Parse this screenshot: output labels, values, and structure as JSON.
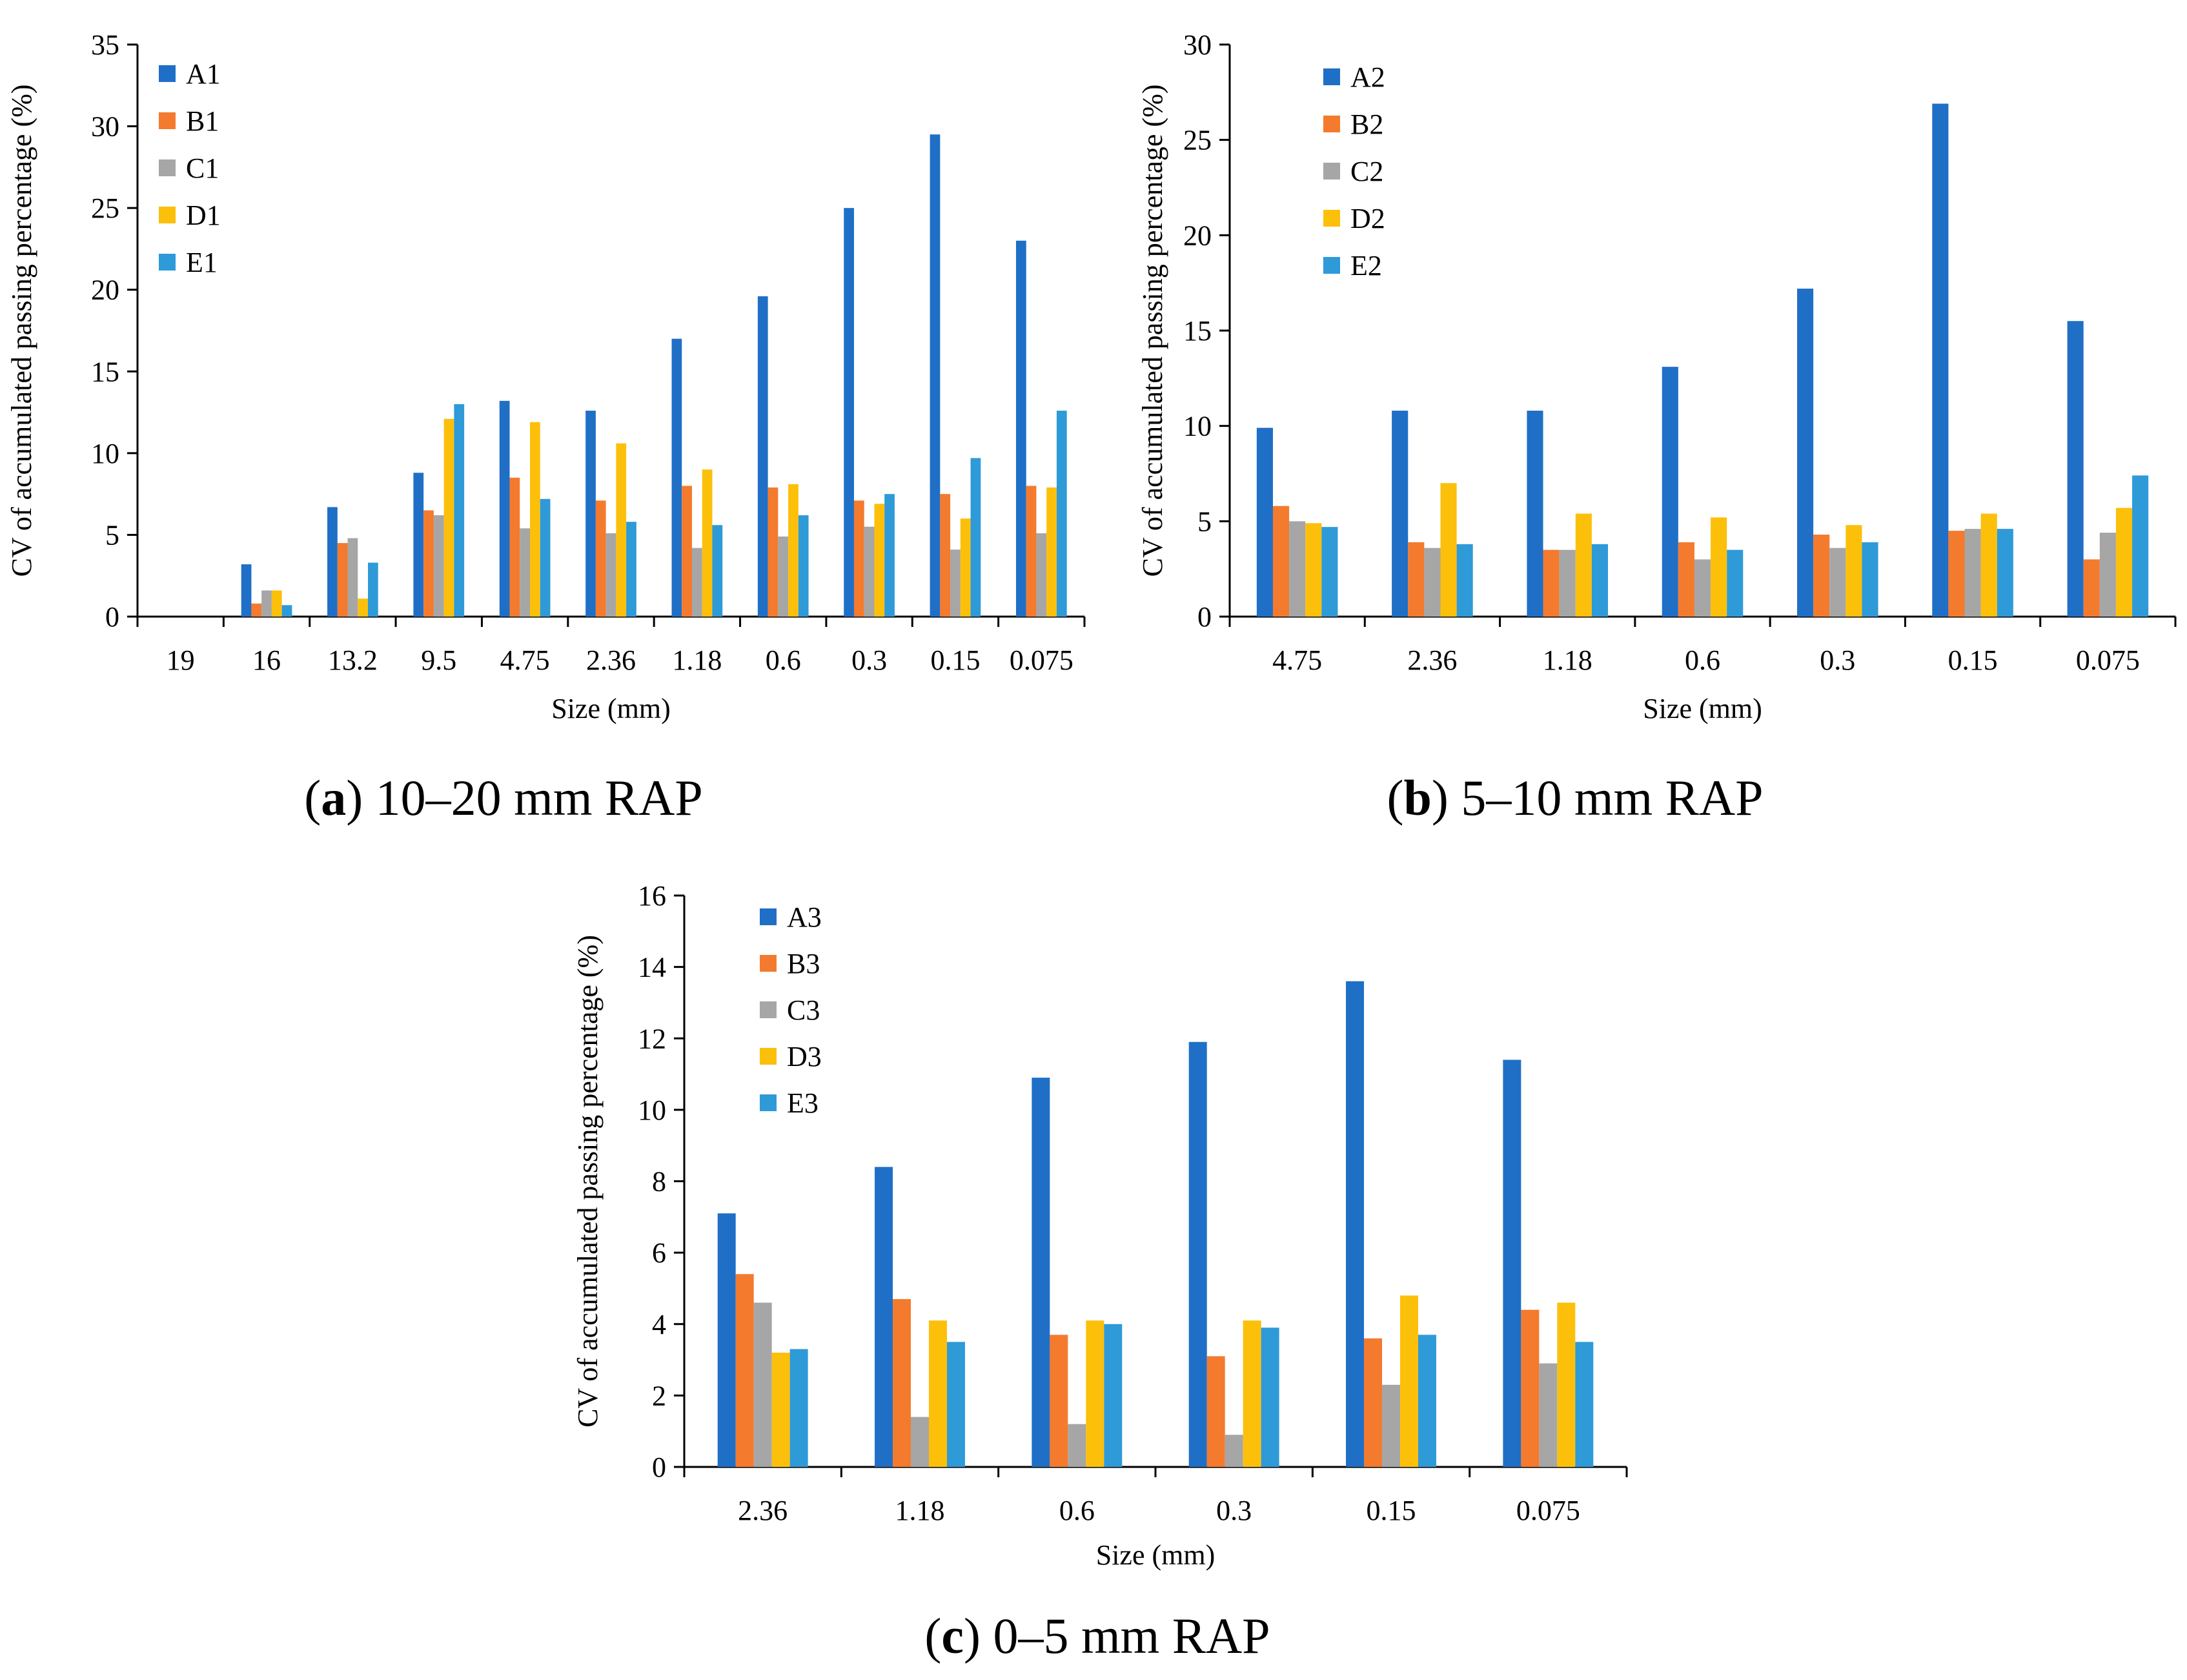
{
  "palette": [
    "#1f6fc6",
    "#f47a2e",
    "#a6a6a6",
    "#fcc00b",
    "#2e9ad8"
  ],
  "chart_data": [
    {
      "type": "bar",
      "caption_label": "a",
      "caption_text": " 10–20 mm RAP",
      "xlabel": "Size (mm)",
      "ylabel": "CV of accumulated passing percentage (%)",
      "ylim": [
        0,
        35
      ],
      "ytick_step": 5,
      "legend_position": "top-left",
      "categories": [
        "19",
        "16",
        "13.2",
        "9.5",
        "4.75",
        "2.36",
        "1.18",
        "0.6",
        "0.3",
        "0.15",
        "0.075"
      ],
      "series": [
        {
          "name": "A1",
          "values": [
            0,
            3.2,
            6.7,
            8.8,
            13.2,
            12.6,
            17.0,
            19.6,
            25.0,
            29.5,
            23.0
          ]
        },
        {
          "name": "B1",
          "values": [
            0,
            0.8,
            4.5,
            6.5,
            8.5,
            7.1,
            8.0,
            7.9,
            7.1,
            7.5,
            8.0
          ]
        },
        {
          "name": "C1",
          "values": [
            0,
            1.6,
            4.8,
            6.2,
            5.4,
            5.1,
            4.2,
            4.9,
            5.5,
            4.1,
            5.1
          ]
        },
        {
          "name": "D1",
          "values": [
            0,
            1.6,
            1.1,
            12.1,
            11.9,
            10.6,
            9.0,
            8.1,
            6.9,
            6.0,
            7.9
          ]
        },
        {
          "name": "E1",
          "values": [
            0,
            0.7,
            3.3,
            13.0,
            7.2,
            5.8,
            5.6,
            6.2,
            7.5,
            9.7,
            12.6
          ]
        }
      ]
    },
    {
      "type": "bar",
      "caption_label": "b",
      "caption_text": " 5–10 mm RAP",
      "xlabel": "Size (mm)",
      "ylabel": "CV of accumulated passing percentage (%)",
      "ylim": [
        0,
        30
      ],
      "ytick_step": 5,
      "legend_position": "top-left",
      "categories": [
        "4.75",
        "2.36",
        "1.18",
        "0.6",
        "0.3",
        "0.15",
        "0.075"
      ],
      "series": [
        {
          "name": "A2",
          "values": [
            9.9,
            10.8,
            10.8,
            13.1,
            17.2,
            26.9,
            15.5
          ]
        },
        {
          "name": "B2",
          "values": [
            5.8,
            3.9,
            3.5,
            3.9,
            4.3,
            4.5,
            3.0
          ]
        },
        {
          "name": "C2",
          "values": [
            5.0,
            3.6,
            3.5,
            3.0,
            3.6,
            4.6,
            4.4
          ]
        },
        {
          "name": "D2",
          "values": [
            4.9,
            7.0,
            5.4,
            5.2,
            4.8,
            5.4,
            5.7
          ]
        },
        {
          "name": "E2",
          "values": [
            4.7,
            3.8,
            3.8,
            3.5,
            3.9,
            4.6,
            7.4
          ]
        }
      ]
    },
    {
      "type": "bar",
      "caption_label": "c",
      "caption_text": " 0–5 mm RAP",
      "xlabel": "Size (mm)",
      "ylabel": "CV of accumulated passing percentage (%)",
      "ylim": [
        0,
        16
      ],
      "ytick_step": 2,
      "legend_position": "top-left",
      "categories": [
        "2.36",
        "1.18",
        "0.6",
        "0.3",
        "0.15",
        "0.075"
      ],
      "series": [
        {
          "name": "A3",
          "values": [
            7.1,
            8.4,
            10.9,
            11.9,
            13.6,
            11.4
          ]
        },
        {
          "name": "B3",
          "values": [
            5.4,
            4.7,
            3.7,
            3.1,
            3.6,
            4.4
          ]
        },
        {
          "name": "C3",
          "values": [
            4.6,
            1.4,
            1.2,
            0.9,
            2.3,
            2.9
          ]
        },
        {
          "name": "D3",
          "values": [
            3.2,
            4.1,
            4.1,
            4.1,
            4.8,
            4.6
          ]
        },
        {
          "name": "E3",
          "values": [
            3.3,
            3.5,
            4.0,
            3.9,
            3.7,
            3.5
          ]
        }
      ]
    }
  ]
}
